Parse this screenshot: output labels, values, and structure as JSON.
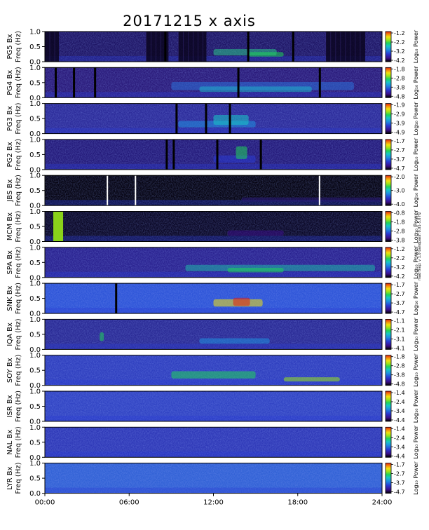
{
  "title": "20171215 x axis",
  "side_note": "mad tvep: v 1.0 bandpass: 0.01-5.0 Hz",
  "colors": {
    "background": "#1a0b3d",
    "colorbar": [
      "#000000",
      "#3b0f8a",
      "#2a3bd4",
      "#1f8fe0",
      "#17c8c4",
      "#1fd35a",
      "#9be31a",
      "#f2e10e",
      "#f58a0c",
      "#e21f10"
    ]
  },
  "chart_data": [
    {
      "type": "heatmap",
      "station": "PG5",
      "ylabel_line1": "PG5  Bx",
      "ylabel_line2": "Freq (Hz)",
      "yticks": [
        "1.0",
        "0.5",
        "0.0"
      ],
      "ylim": [
        0,
        1
      ],
      "cbar_ticks": [
        "-1.2",
        "-2.2",
        "-3.2",
        "-4.2"
      ],
      "cbar_label": "Log₁₀ Power"
    },
    {
      "type": "heatmap",
      "station": "PG4",
      "ylabel_line1": "PG4  Bx",
      "ylabel_line2": "Freq (Hz)",
      "yticks": [
        "1.0",
        "0.5",
        "0.0"
      ],
      "ylim": [
        0,
        1
      ],
      "cbar_ticks": [
        "-1.8",
        "-2.8",
        "-3.8",
        "-4.8"
      ],
      "cbar_label": "Log₁₀ Power"
    },
    {
      "type": "heatmap",
      "station": "PG3",
      "ylabel_line1": "PG3  Bx",
      "ylabel_line2": "Freq (Hz)",
      "yticks": [
        "1.0",
        "0.5",
        "0.0"
      ],
      "ylim": [
        0,
        1
      ],
      "cbar_ticks": [
        "-1.9",
        "-2.9",
        "-3.9",
        "-4.9"
      ],
      "cbar_label": "Log₁₀ Power"
    },
    {
      "type": "heatmap",
      "station": "PG2",
      "ylabel_line1": "PG2  Bx",
      "ylabel_line2": "Freq (Hz)",
      "yticks": [
        "1.0",
        "0.5",
        "0.0"
      ],
      "ylim": [
        0,
        1
      ],
      "cbar_ticks": [
        "-1.7",
        "-2.7",
        "-3.7",
        "-4.7"
      ],
      "cbar_label": "Log₁₀ Power"
    },
    {
      "type": "heatmap",
      "station": "JBS",
      "ylabel_line1": "JBS  Bx",
      "ylabel_line2": "Freq (Hz)",
      "yticks": [
        "1.0",
        "0.5",
        "0.0"
      ],
      "ylim": [
        0,
        1
      ],
      "cbar_ticks": [
        "-2.0",
        "-3.0",
        "-4.0"
      ],
      "cbar_label": "Log₁₀ Power"
    },
    {
      "type": "heatmap",
      "station": "MCM",
      "ylabel_line1": "MCM  Bx",
      "ylabel_line2": "Freq (Hz)",
      "yticks": [
        "1.0",
        "0.5",
        "0.0"
      ],
      "ylim": [
        0,
        1
      ],
      "cbar_ticks": [
        "-0.8",
        "-1.8",
        "-2.8",
        "-3.8"
      ],
      "cbar_label": "Log₁₀ Power"
    },
    {
      "type": "heatmap",
      "station": "SPA",
      "ylabel_line1": "SPA  Bx",
      "ylabel_line2": "Freq (Hz)",
      "yticks": [
        "1.0",
        "0.5",
        "0.0"
      ],
      "ylim": [
        0,
        1
      ],
      "cbar_ticks": [
        "-1.2",
        "-2.2",
        "-3.2",
        "-4.2"
      ],
      "cbar_label": "Log₁₀ Power"
    },
    {
      "type": "heatmap",
      "station": "SNK",
      "ylabel_line1": "SNK  Bx",
      "ylabel_line2": "Freq (Hz)",
      "yticks": [
        "1.0",
        "0.5",
        "0.0"
      ],
      "ylim": [
        0,
        1
      ],
      "cbar_ticks": [
        "-1.7",
        "-2.7",
        "-3.7",
        "-4.7"
      ],
      "cbar_label": "Log₁₀ Power"
    },
    {
      "type": "heatmap",
      "station": "IQA",
      "ylabel_line1": "IQA  Bx",
      "ylabel_line2": "Freq (Hz)",
      "yticks": [
        "1.0",
        "0.5",
        "0.0"
      ],
      "ylim": [
        0,
        1
      ],
      "cbar_ticks": [
        "-1.1",
        "-2.1",
        "-3.1",
        "-4.1"
      ],
      "cbar_label": "Log₁₀ Power"
    },
    {
      "type": "heatmap",
      "station": "SOY",
      "ylabel_line1": "SOY  Bx",
      "ylabel_line2": "Freq (Hz)",
      "yticks": [
        "1.0",
        "0.5",
        "0.0"
      ],
      "ylim": [
        0,
        1
      ],
      "cbar_ticks": [
        "-1.8",
        "-2.8",
        "-3.8",
        "-4.8"
      ],
      "cbar_label": "Log₁₀ Power"
    },
    {
      "type": "heatmap",
      "station": "ISR",
      "ylabel_line1": "ISR  Bx",
      "ylabel_line2": "Freq (Hz)",
      "yticks": [
        "1.0",
        "0.5",
        "0.0"
      ],
      "ylim": [
        0,
        1
      ],
      "cbar_ticks": [
        "-1.4",
        "-2.4",
        "-3.4",
        "-4.4"
      ],
      "cbar_label": "Log₁₀ Power"
    },
    {
      "type": "heatmap",
      "station": "NAL",
      "ylabel_line1": "NAL  Bx",
      "ylabel_line2": "Freq (Hz)",
      "yticks": [
        "1.0",
        "0.5",
        "0.0"
      ],
      "ylim": [
        0,
        1
      ],
      "cbar_ticks": [
        "-1.4",
        "-2.4",
        "-3.4",
        "-4.4"
      ],
      "cbar_label": "Log₁₀ Power"
    },
    {
      "type": "heatmap",
      "station": "LYR",
      "ylabel_line1": "LYR  Bx",
      "ylabel_line2": "Freq (Hz)",
      "yticks": [
        "1.0",
        "0.5",
        "0.0"
      ],
      "ylim": [
        0,
        1
      ],
      "cbar_ticks": [
        "-1.7",
        "-2.7",
        "-3.7",
        "-4.7"
      ],
      "cbar_label": "Log₁₀ Power"
    }
  ],
  "xaxis": {
    "ticks": [
      "00:00",
      "06:00",
      "12:00",
      "18:00",
      "24:00"
    ],
    "xlim": [
      "00:00",
      "24:00"
    ]
  }
}
